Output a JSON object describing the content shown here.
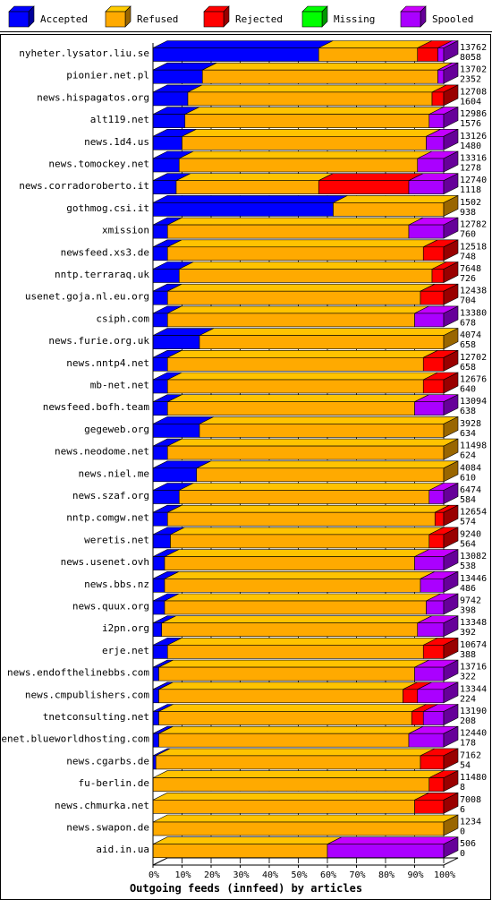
{
  "chart_data": {
    "type": "bar",
    "orientation": "horizontal",
    "stacked": "percent",
    "three_d": true,
    "title": "Outgoing feeds (innfeed) by articles",
    "xlabel": "",
    "ylabel": "",
    "xlim": [
      0,
      100
    ],
    "x_ticks": [
      "0%",
      "10%",
      "20%",
      "30%",
      "40%",
      "50%",
      "60%",
      "70%",
      "80%",
      "90%",
      "100%"
    ],
    "grid": true,
    "legend_position": "top",
    "series": [
      {
        "name": "Accepted",
        "color": "#0000ff"
      },
      {
        "name": "Refused",
        "color": "#ffaa00"
      },
      {
        "name": "Rejected",
        "color": "#ff0000"
      },
      {
        "name": "Missing",
        "color": "#00ff00"
      },
      {
        "name": "Spooled",
        "color": "#aa00ff"
      }
    ],
    "rows": [
      {
        "host": "nyheter.lysator.liu.se",
        "offered": "13762",
        "accepted": "8058",
        "pct": [
          57,
          34,
          7,
          0,
          2
        ]
      },
      {
        "host": "pionier.net.pl",
        "offered": "13702",
        "accepted": "2352",
        "pct": [
          17,
          81,
          0,
          0,
          2
        ]
      },
      {
        "host": "news.hispagatos.org",
        "offered": "12708",
        "accepted": "1604",
        "pct": [
          12,
          84,
          4,
          0,
          0
        ]
      },
      {
        "host": "alt119.net",
        "offered": "12986",
        "accepted": "1576",
        "pct": [
          11,
          84,
          0,
          0,
          5
        ]
      },
      {
        "host": "news.1d4.us",
        "offered": "13126",
        "accepted": "1480",
        "pct": [
          10,
          84,
          0,
          0,
          6
        ]
      },
      {
        "host": "news.tomockey.net",
        "offered": "13316",
        "accepted": "1278",
        "pct": [
          9,
          82,
          0,
          0,
          9
        ]
      },
      {
        "host": "news.corradoroberto.it",
        "offered": "12740",
        "accepted": "1118",
        "pct": [
          8,
          49,
          31,
          0,
          12
        ]
      },
      {
        "host": "gothmog.csi.it",
        "offered": "1502",
        "accepted": "938",
        "pct": [
          62,
          38,
          0,
          0,
          0
        ]
      },
      {
        "host": "xmission",
        "offered": "12782",
        "accepted": "760",
        "pct": [
          5,
          83,
          0,
          0,
          12
        ]
      },
      {
        "host": "newsfeed.xs3.de",
        "offered": "12518",
        "accepted": "748",
        "pct": [
          5,
          88,
          7,
          0,
          0
        ]
      },
      {
        "host": "nntp.terraraq.uk",
        "offered": "7648",
        "accepted": "726",
        "pct": [
          9,
          87,
          4,
          0,
          0
        ]
      },
      {
        "host": "usenet.goja.nl.eu.org",
        "offered": "12438",
        "accepted": "704",
        "pct": [
          5,
          87,
          8,
          0,
          0
        ]
      },
      {
        "host": "csiph.com",
        "offered": "13380",
        "accepted": "678",
        "pct": [
          5,
          85,
          0,
          0,
          10
        ]
      },
      {
        "host": "news.furie.org.uk",
        "offered": "4074",
        "accepted": "658",
        "pct": [
          16,
          84,
          0,
          0,
          0
        ]
      },
      {
        "host": "news.nntp4.net",
        "offered": "12702",
        "accepted": "658",
        "pct": [
          5,
          88,
          7,
          0,
          0
        ]
      },
      {
        "host": "mb-net.net",
        "offered": "12676",
        "accepted": "640",
        "pct": [
          5,
          88,
          7,
          0,
          0
        ]
      },
      {
        "host": "newsfeed.bofh.team",
        "offered": "13094",
        "accepted": "638",
        "pct": [
          5,
          85,
          0,
          0,
          10
        ]
      },
      {
        "host": "gegeweb.org",
        "offered": "3928",
        "accepted": "634",
        "pct": [
          16,
          84,
          0,
          0,
          0
        ]
      },
      {
        "host": "news.neodome.net",
        "offered": "11498",
        "accepted": "624",
        "pct": [
          5,
          95,
          0,
          0,
          0
        ]
      },
      {
        "host": "news.niel.me",
        "offered": "4084",
        "accepted": "610",
        "pct": [
          15,
          85,
          0,
          0,
          0
        ]
      },
      {
        "host": "news.szaf.org",
        "offered": "6474",
        "accepted": "584",
        "pct": [
          9,
          86,
          0,
          0,
          5
        ]
      },
      {
        "host": "nntp.comgw.net",
        "offered": "12654",
        "accepted": "574",
        "pct": [
          5,
          92,
          3,
          0,
          0
        ]
      },
      {
        "host": "weretis.net",
        "offered": "9240",
        "accepted": "564",
        "pct": [
          6,
          89,
          5,
          0,
          0
        ]
      },
      {
        "host": "news.usenet.ovh",
        "offered": "13082",
        "accepted": "538",
        "pct": [
          4,
          86,
          0,
          0,
          10
        ]
      },
      {
        "host": "news.bbs.nz",
        "offered": "13446",
        "accepted": "486",
        "pct": [
          4,
          88,
          0,
          0,
          8
        ]
      },
      {
        "host": "news.quux.org",
        "offered": "9742",
        "accepted": "398",
        "pct": [
          4,
          90,
          0,
          0,
          6
        ]
      },
      {
        "host": "i2pn.org",
        "offered": "13348",
        "accepted": "392",
        "pct": [
          3,
          88,
          0,
          0,
          9
        ]
      },
      {
        "host": "erje.net",
        "offered": "10674",
        "accepted": "388",
        "pct": [
          5,
          88,
          7,
          0,
          0
        ]
      },
      {
        "host": "news.endofthelinebbs.com",
        "offered": "13716",
        "accepted": "322",
        "pct": [
          2,
          88,
          0,
          0,
          10
        ]
      },
      {
        "host": "news.cmpublishers.com",
        "offered": "13344",
        "accepted": "224",
        "pct": [
          2,
          84,
          5,
          0,
          9
        ]
      },
      {
        "host": "tnetconsulting.net",
        "offered": "13190",
        "accepted": "208",
        "pct": [
          2,
          87,
          4,
          0,
          7
        ]
      },
      {
        "host": "usenet.blueworldhosting.com",
        "offered": "12440",
        "accepted": "178",
        "pct": [
          2,
          86,
          0,
          0,
          12
        ]
      },
      {
        "host": "news.cgarbs.de",
        "offered": "7162",
        "accepted": "54",
        "pct": [
          1,
          91,
          8,
          0,
          0
        ]
      },
      {
        "host": "fu-berlin.de",
        "offered": "11480",
        "accepted": "8",
        "pct": [
          0,
          95,
          5,
          0,
          0
        ]
      },
      {
        "host": "news.chmurka.net",
        "offered": "7008",
        "accepted": "6",
        "pct": [
          0,
          90,
          10,
          0,
          0
        ]
      },
      {
        "host": "news.swapon.de",
        "offered": "1234",
        "accepted": "0",
        "pct": [
          0,
          100,
          0,
          0,
          0
        ]
      },
      {
        "host": "aid.in.ua",
        "offered": "506",
        "accepted": "0",
        "pct": [
          0,
          60,
          0,
          0,
          40
        ]
      }
    ]
  }
}
